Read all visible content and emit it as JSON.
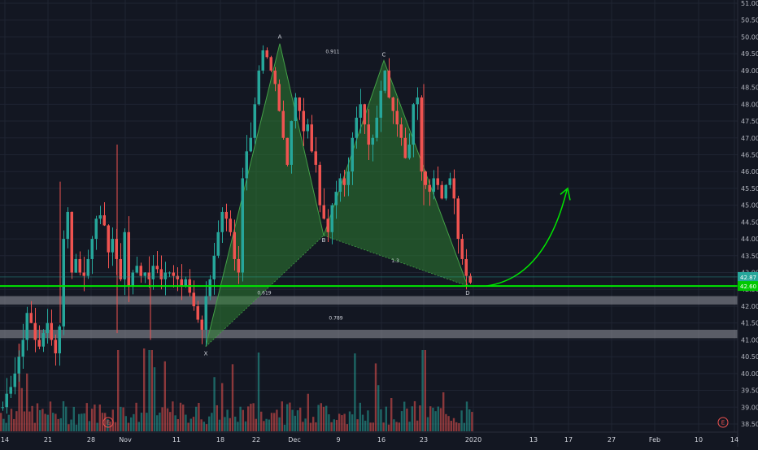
{
  "chart_data": {
    "type": "candlestick",
    "y_axis": {
      "ticks": [
        "51.00",
        "50.50",
        "50.00",
        "49.50",
        "49.00",
        "48.50",
        "48.00",
        "47.50",
        "47.00",
        "46.50",
        "46.00",
        "45.50",
        "45.00",
        "44.50",
        "44.00",
        "43.50",
        "43.00",
        "42.50",
        "42.00",
        "41.50",
        "41.00",
        "40.50",
        "40.00",
        "39.50",
        "39.00",
        "38.50"
      ],
      "range": [
        38.3,
        51.1
      ]
    },
    "x_axis": {
      "ticks": [
        "14",
        "21",
        "28",
        "Nov",
        "11",
        "18",
        "22",
        "Dec",
        "9",
        "16",
        "23",
        "2020",
        "13",
        "17",
        "27",
        "Feb",
        "10",
        "14"
      ]
    },
    "price_tags": {
      "last": "42.87",
      "support": "42.60"
    },
    "support_line": 42.6,
    "zones": [
      {
        "low": 42.05,
        "high": 42.3
      },
      {
        "low": 41.05,
        "high": 41.3
      }
    ],
    "pattern": {
      "points": [
        {
          "label": "X",
          "price": 40.8
        },
        {
          "label": "A",
          "price": 49.8
        },
        {
          "label": "B",
          "price": 44.1
        },
        {
          "label": "C",
          "price": 49.3
        },
        {
          "label": "D",
          "price": 42.6
        }
      ],
      "ratios": [
        {
          "text": "0.911"
        },
        {
          "text": "0.619"
        },
        {
          "text": "1.3"
        },
        {
          "text": "0.789"
        }
      ]
    },
    "earnings_markers": [
      "E",
      "E"
    ],
    "price_path": [
      [
        39.0,
        39.4,
        39.6,
        40.0,
        40.5,
        41.0,
        41.8,
        41.5,
        41.0,
        40.8,
        41.2,
        41.5,
        41.0,
        40.6,
        41.4,
        44.0,
        44.8,
        43.0,
        43.4,
        43.0,
        42.9,
        43.4,
        44.0,
        44.6,
        44.7,
        44.4,
        43.6,
        44.0,
        43.4,
        42.8,
        44.2,
        42.6,
        43.0,
        43.2,
        42.9,
        43.0,
        42.8,
        43.2,
        43.1,
        42.8,
        43.0,
        43.0,
        42.9,
        42.8,
        42.6,
        42.8,
        42.4,
        42.0,
        41.6,
        41.3,
        42.3,
        42.8,
        43.5,
        44.2,
        44.8,
        44.6,
        44.2,
        43.4,
        43.0,
        45.8,
        46.6,
        47.0,
        48.0,
        49.0,
        49.6,
        49.4,
        49.0,
        48.6,
        47.8,
        47.0,
        46.2,
        47.5,
        48.2,
        47.8,
        47.2,
        47.4,
        46.6,
        46.2,
        45.0,
        44.6,
        44.2,
        45.0,
        45.4,
        45.8,
        45.6,
        46.0,
        47.0,
        47.6,
        48.0,
        47.4,
        46.8,
        47.0,
        47.6,
        48.4,
        49.0,
        48.2,
        47.8,
        47.4,
        47.0,
        46.4,
        46.8,
        48.0,
        48.2,
        46.0,
        45.6,
        45.4,
        45.8,
        45.6,
        45.2,
        45.6,
        45.8,
        45.2,
        44.0,
        43.4,
        42.9,
        42.7
      ]
    ],
    "volume_note": "volume histogram (relative)"
  },
  "colors": {
    "background": "#131722",
    "grid": "#1f2432",
    "up": "#26a69a",
    "down": "#ef5350",
    "pattern_fill": "#2e7d32",
    "support": "#00e600",
    "zone": "#9598a1",
    "arrow": "#00e600",
    "tag_last": "#26a69a",
    "tag_support": "#00c800"
  }
}
